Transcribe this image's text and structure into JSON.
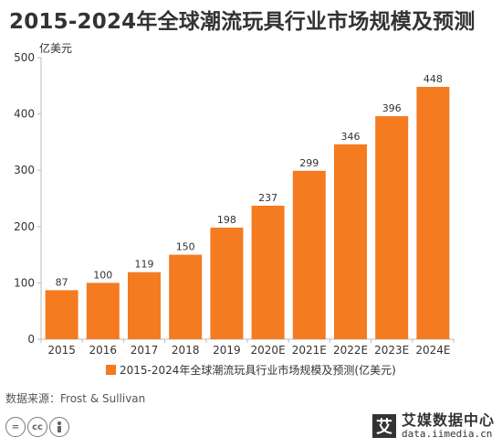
{
  "chart_data": {
    "type": "bar",
    "title": "2015-2024年全球潮流玩具行业市场规模及预测",
    "ylabel": "亿美元",
    "xlabel": "",
    "categories": [
      "2015",
      "2016",
      "2017",
      "2018",
      "2019",
      "2020E",
      "2021E",
      "2022E",
      "2023E",
      "2024E"
    ],
    "series": [
      {
        "name": "2015-2024年全球潮流玩具行业市场规模及预测(亿美元)",
        "values": [
          87,
          100,
          119,
          150,
          198,
          237,
          299,
          346,
          396,
          448
        ]
      }
    ],
    "yticks": [
      "0",
      "100",
      "200",
      "300",
      "400",
      "500"
    ],
    "ylim": [
      0,
      500
    ],
    "grid": false,
    "legend_position": "bottom",
    "bar_color": "#F47B20"
  },
  "source": "数据来源：Frost & Sullivan",
  "license_icons": [
    "=",
    "cc",
    "person-icon"
  ],
  "brand": {
    "logo": "艾",
    "name": "艾媒数据中心",
    "url": "data.iimedia.cn"
  }
}
